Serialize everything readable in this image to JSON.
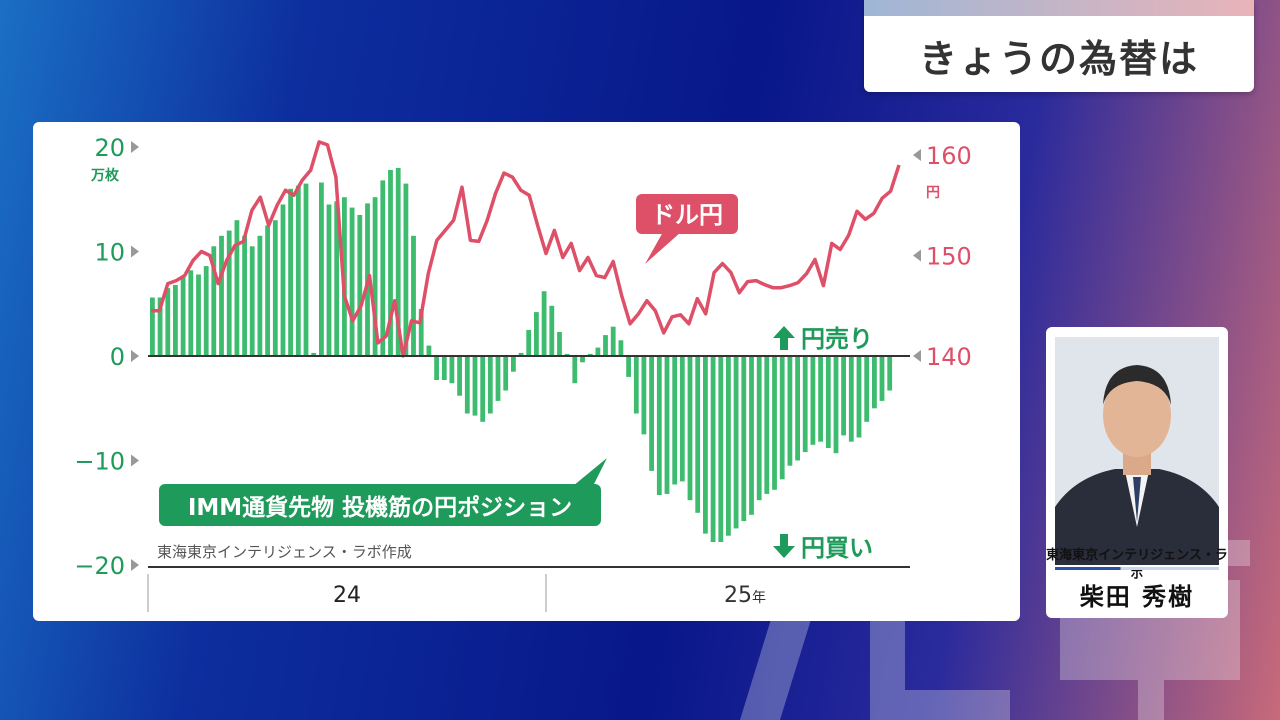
{
  "program": {
    "title": "きょうの為替は"
  },
  "presenter": {
    "organization": "東海東京インテリジェンス・ラボ",
    "name": "柴田 秀樹"
  },
  "colors": {
    "bar_green": "#3dbb6e",
    "line_red": "#de4f68",
    "label_green": "#1e9a5a",
    "axis_gray": "#999999"
  },
  "chart_data": {
    "type": "bar",
    "source": "東海東京インテリジェンス・ラボ作成",
    "bar_series_label": "IMM通貨先物 投機筋の円ポジション",
    "line_series_label": "ドル円",
    "left_axis": {
      "unit": "万枚",
      "ticks": [
        20,
        10,
        0,
        -10,
        -20
      ],
      "tick_labels": [
        "20",
        "10",
        "0",
        "−10",
        "−20"
      ],
      "range": [
        -20,
        20
      ]
    },
    "right_axis": {
      "unit": "円",
      "ticks": [
        160,
        150,
        140
      ],
      "tick_labels": [
        "160",
        "150",
        "140"
      ],
      "range": [
        120,
        160
      ]
    },
    "annotations": {
      "upper": "円売り",
      "lower": "円買い"
    },
    "x_axis": {
      "labels": [
        "24",
        "25"
      ],
      "year_suffix": "年"
    },
    "bar_values": [
      5.6,
      5.6,
      6.5,
      6.8,
      7.5,
      8.2,
      7.8,
      8.6,
      10.5,
      11.5,
      12.0,
      13.0,
      11.5,
      10.5,
      11.5,
      12.5,
      13.0,
      14.5,
      16.0,
      16.3,
      16.5,
      0.3,
      16.6,
      14.5,
      14.8,
      15.2,
      14.2,
      13.5,
      14.6,
      15.2,
      16.8,
      17.8,
      18.0,
      16.5,
      11.5,
      4.5,
      1.0,
      -2.3,
      -2.3,
      -2.6,
      -3.8,
      -5.5,
      -5.7,
      -6.3,
      -5.5,
      -4.3,
      -3.3,
      -1.5,
      0.3,
      2.5,
      4.2,
      6.2,
      4.8,
      2.3,
      0.2,
      -2.6,
      -0.6,
      0.2,
      0.8,
      2.0,
      2.8,
      1.5,
      -2.0,
      -5.5,
      -7.5,
      -11.0,
      -13.3,
      -13.2,
      -12.3,
      -12.0,
      -13.8,
      -15.0,
      -17.0,
      -17.8,
      -17.8,
      -17.2,
      -16.5,
      -15.8,
      -15.2,
      -13.8,
      -13.2,
      -12.8,
      -11.8,
      -10.5,
      -10.0,
      -9.2,
      -8.5,
      -8.2,
      -8.8,
      -9.3,
      -7.6,
      -8.2,
      -7.8,
      -6.3,
      -5.0,
      -4.3,
      -3.3
    ],
    "line_values": [
      144.5,
      144.5,
      147.2,
      147.5,
      148.0,
      149.5,
      150.4,
      150.0,
      147.2,
      149.5,
      151.0,
      151.4,
      154.5,
      155.8,
      153.0,
      155.0,
      156.5,
      156.0,
      157.5,
      158.5,
      161.3,
      161.0,
      157.8,
      146.0,
      143.5,
      145.0,
      148.0,
      141.3,
      142.0,
      145.5,
      140.0,
      143.5,
      143.3,
      148.2,
      151.5,
      152.5,
      153.5,
      156.8,
      151.5,
      151.4,
      153.5,
      156.2,
      158.2,
      157.8,
      156.5,
      156.0,
      153.0,
      150.2,
      152.5,
      149.8,
      151.2,
      148.5,
      149.8,
      148.0,
      147.8,
      149.4,
      146.0,
      143.2,
      144.2,
      145.5,
      144.5,
      142.3,
      143.9,
      144.1,
      143.2,
      145.7,
      144.2,
      148.3,
      149.2,
      148.3,
      146.3,
      147.4,
      147.5,
      147.1,
      146.8,
      146.8,
      147.0,
      147.3,
      148.2,
      149.6,
      147.0,
      151.2,
      150.6,
      152.0,
      154.4,
      153.6,
      154.2,
      155.7,
      156.4,
      159.0
    ],
    "grid": false,
    "legend": "none"
  }
}
